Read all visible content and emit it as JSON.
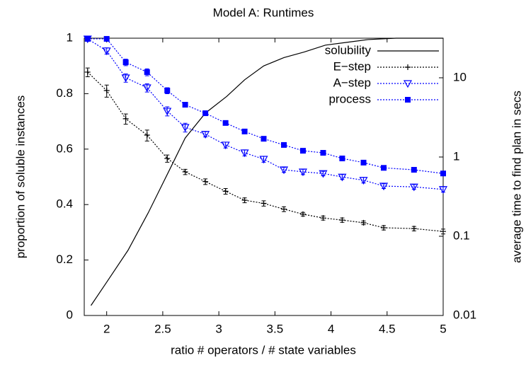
{
  "chart_data": {
    "type": "line",
    "title": "Model A: Runtimes",
    "xlabel": "ratio # operators / # state variables",
    "ylabel": "proportion of soluble instances",
    "y2label": "average time to find plan in secs",
    "xlim": [
      1.8,
      5
    ],
    "xticks": [
      2,
      2.5,
      3,
      3.5,
      4,
      4.5,
      5
    ],
    "ylim": [
      0,
      1
    ],
    "yticks": [
      0,
      0.2,
      0.4,
      0.6,
      0.8,
      1
    ],
    "y2lim": [
      0.01,
      31.6
    ],
    "y2ticks": [
      0.01,
      0.1,
      1,
      10
    ],
    "y2scale": "log",
    "legend": "top-right",
    "series": [
      {
        "name": "solubility",
        "color": "#000000",
        "dash": "solid",
        "marker": "none",
        "x": [
          1.86,
          2.0,
          2.19,
          2.37,
          2.56,
          2.7,
          2.88,
          3.07,
          3.23,
          3.4,
          3.58,
          3.76,
          3.95,
          4.14,
          4.33,
          4.58,
          5.0
        ],
        "values": [
          0.036,
          0.12,
          0.235,
          0.37,
          0.525,
          0.64,
          0.73,
          0.79,
          0.85,
          0.9,
          0.93,
          0.95,
          0.975,
          0.985,
          0.995,
          1.0,
          1.0
        ]
      },
      {
        "name": "E−step",
        "color": "#000000",
        "dash": "dotted",
        "marker": "plus",
        "axis": "y2",
        "x": [
          1.83,
          2.0,
          2.17,
          2.36,
          2.54,
          2.7,
          2.88,
          3.06,
          3.23,
          3.4,
          3.58,
          3.75,
          3.93,
          4.1,
          4.29,
          4.47,
          4.74,
          5.0
        ],
        "values": [
          11.8,
          6.9,
          3.04,
          1.89,
          0.96,
          0.65,
          0.49,
          0.37,
          0.285,
          0.26,
          0.22,
          0.19,
          0.17,
          0.16,
          0.148,
          0.128,
          0.125,
          0.115
        ],
        "errors": [
          1.5,
          1.2,
          0.45,
          0.3,
          0.1,
          0.05,
          0.04,
          0.03,
          0.02,
          0.02,
          0.015,
          0.01,
          0.01,
          0.01,
          0.008,
          0.008,
          0.008,
          0.008
        ]
      },
      {
        "name": "A−step",
        "color": "#0000ff",
        "dash": "dotted",
        "marker": "triangle-down",
        "axis": "y2",
        "x": [
          1.83,
          2.0,
          2.17,
          2.36,
          2.54,
          2.7,
          2.88,
          3.06,
          3.23,
          3.4,
          3.58,
          3.75,
          3.93,
          4.1,
          4.29,
          4.47,
          4.74,
          5.0
        ],
        "values": [
          31,
          21.9,
          10,
          7.5,
          3.8,
          2.37,
          1.94,
          1.42,
          1.13,
          0.94,
          0.69,
          0.65,
          0.62,
          0.56,
          0.51,
          0.43,
          0.42,
          0.39
        ],
        "errors": [
          2,
          2,
          1.2,
          0.9,
          0.5,
          0.3,
          0.15,
          0.12,
          0.1,
          0.08,
          0.05,
          0.05,
          0.04,
          0.04,
          0.04,
          0.03,
          0.03,
          0.03
        ]
      },
      {
        "name": "process",
        "color": "#0000ff",
        "dash": "dotted",
        "marker": "square",
        "axis": "y2",
        "x": [
          1.83,
          2.0,
          2.17,
          2.36,
          2.54,
          2.7,
          2.88,
          3.06,
          3.23,
          3.4,
          3.58,
          3.75,
          3.93,
          4.1,
          4.29,
          4.47,
          4.74,
          5.0
        ],
        "values": [
          31,
          31,
          15.7,
          11.8,
          6.9,
          4.57,
          3.57,
          2.69,
          2.1,
          1.7,
          1.42,
          1.2,
          1.13,
          0.96,
          0.85,
          0.73,
          0.69,
          0.62
        ],
        "errors": [
          1,
          1.5,
          1.5,
          1.2,
          0.6,
          0.3,
          0.2,
          0.15,
          0.12,
          0.1,
          0.08,
          0.06,
          0.06,
          0.05,
          0.05,
          0.04,
          0.04,
          0.04
        ]
      }
    ]
  }
}
